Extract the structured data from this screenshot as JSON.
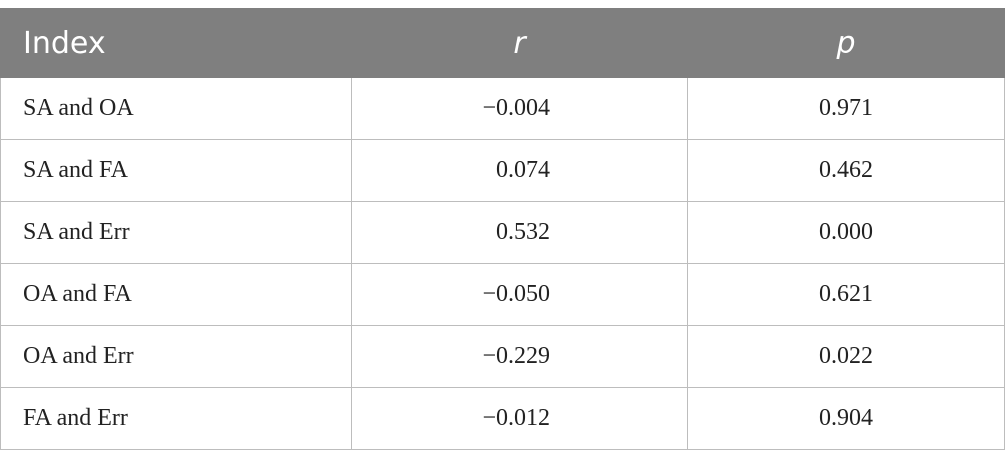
{
  "table": {
    "header": [
      "Index",
      "r",
      "p"
    ],
    "rows": [
      [
        "SA and OA",
        "−0.004",
        "0.971"
      ],
      [
        "SA and FA",
        "0.074",
        "0.462"
      ],
      [
        "SA and Err",
        "0.532",
        "0.000"
      ],
      [
        "OA and FA",
        "−0.050",
        "0.621"
      ],
      [
        "OA and Err",
        "−0.229",
        "0.022"
      ],
      [
        "FA and Err",
        "−0.012",
        "0.904"
      ]
    ]
  }
}
